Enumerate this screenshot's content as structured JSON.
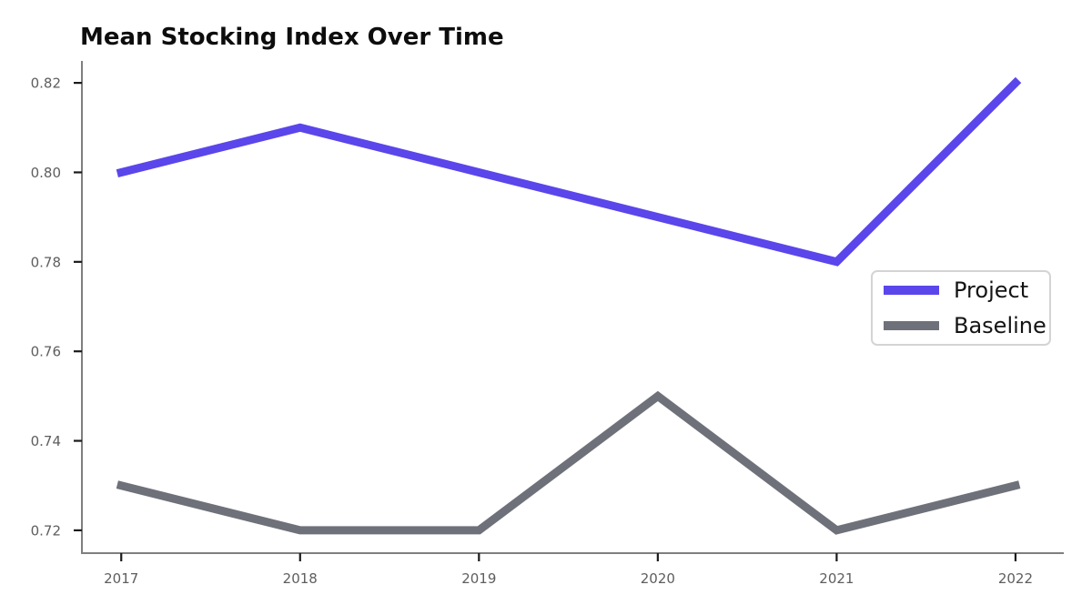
{
  "chart_data": {
    "type": "line",
    "title": "Mean Stocking Index Over Time",
    "xlabel": "",
    "ylabel": "",
    "x": [
      2017,
      2018,
      2019,
      2020,
      2021,
      2022
    ],
    "series": [
      {
        "name": "Project",
        "color": "#5a46eb",
        "values": [
          0.8,
          0.81,
          0.8,
          0.79,
          0.78,
          0.82
        ]
      },
      {
        "name": "Baseline",
        "color": "#6e7179",
        "values": [
          0.73,
          0.72,
          0.72,
          0.75,
          0.72,
          0.73
        ]
      }
    ],
    "xticks": [
      2017,
      2018,
      2019,
      2020,
      2021,
      2022
    ],
    "yticks": [
      0.72,
      0.74,
      0.76,
      0.78,
      0.8,
      0.82
    ],
    "xlim": [
      2016.78,
      2022.27
    ],
    "ylim": [
      0.7149,
      0.8249
    ],
    "grid": false,
    "legend": {
      "position": "center-right",
      "entries": [
        "Project",
        "Baseline"
      ]
    },
    "style": {
      "line_width": 9,
      "axis_color": "#7f7f7f",
      "tick_color": "#1a1a1a",
      "tick_label_color": "#5e5e5e",
      "title_color": "#0d0d0d",
      "legend_border_color": "#d4d4d4",
      "background_color": "#ffffff"
    }
  }
}
